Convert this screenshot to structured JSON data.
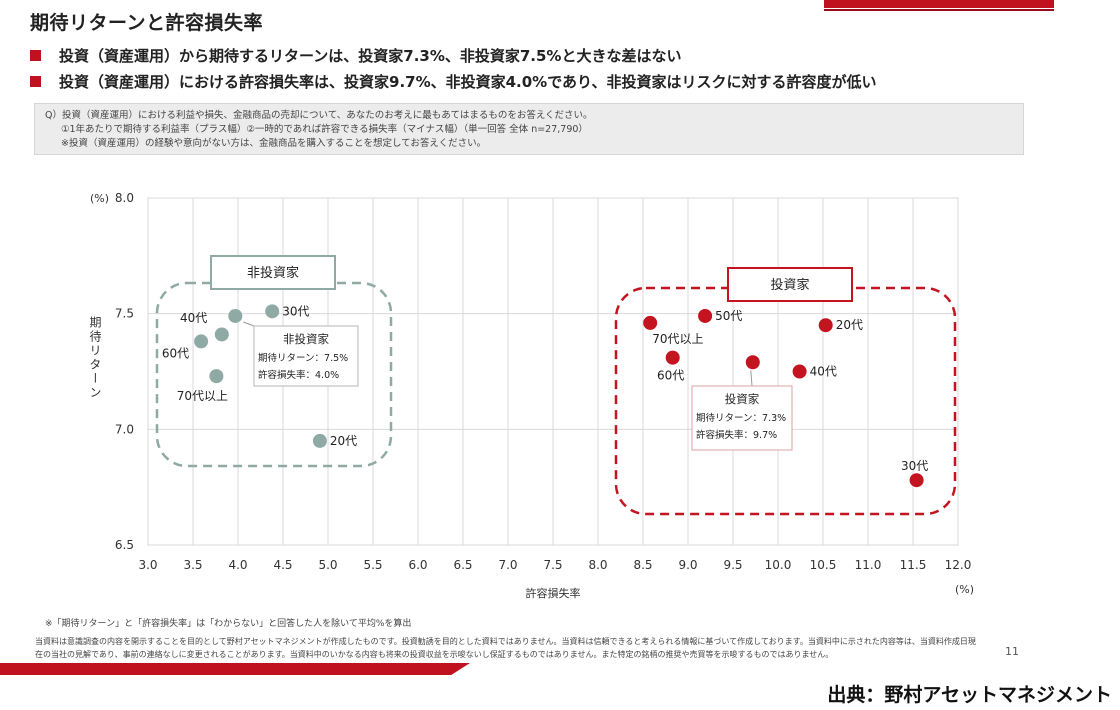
{
  "header": {
    "title": "期待リターンと許容損失率",
    "bullets": [
      "投資（資産運用）から期待するリターンは、投資家7.3%、非投資家7.5%と大きな差はない",
      "投資（資産運用）における許容損失率は、投資家9.7%、非投資家4.0%であり、非投資家はリスクに対する許容度が低い"
    ]
  },
  "question": {
    "lines": [
      "Q）投資（資産運用）における利益や損失、金融商品の売却について、あなたのお考えに最もあてはまるものをお答えください。",
      "①1年あたりで期待する利益率（プラス幅）②一時的であれば許容できる損失率（マイナス幅）（単一回答 全体 n=27,790）",
      "※投資（資産運用）の経験や意向がない方は、金融商品を購入することを想定してお答えください。"
    ]
  },
  "chart_data": {
    "type": "scatter",
    "xlabel": "許容損失率",
    "ylabel": "期待リターン",
    "x_unit": "(%)",
    "y_unit": "(%)",
    "xlim": [
      3.0,
      12.0
    ],
    "ylim": [
      6.5,
      8.0
    ],
    "x_ticks": [
      "3.0",
      "3.5",
      "4.0",
      "4.5",
      "5.0",
      "5.5",
      "6.0",
      "6.5",
      "7.0",
      "7.5",
      "8.0",
      "8.5",
      "9.0",
      "9.5",
      "10.0",
      "10.5",
      "11.0",
      "11.5",
      "12.0"
    ],
    "y_ticks": [
      "6.5",
      "7.0",
      "7.5",
      "8.0"
    ],
    "grid": true,
    "colors": {
      "non_investor": "#8fa9a4",
      "investor": "#c4141f"
    },
    "groups": [
      {
        "name": "非投資家",
        "summary_title": "非投資家",
        "summary_lines": [
          "期待リターン：7.5%",
          "許容損失率：4.0%"
        ],
        "points": [
          {
            "label": "30代",
            "x": 4.38,
            "y": 7.51
          },
          {
            "label": "40代",
            "x": 3.97,
            "y": 7.49
          },
          {
            "label": "",
            "x": 3.82,
            "y": 7.41
          },
          {
            "label": "60代",
            "x": 3.59,
            "y": 7.38
          },
          {
            "label": "70代以上",
            "x": 3.76,
            "y": 7.23
          },
          {
            "label": "20代",
            "x": 4.91,
            "y": 6.95
          }
        ]
      },
      {
        "name": "投資家",
        "summary_title": "投資家",
        "summary_lines": [
          "期待リターン：7.3%",
          "許容損失率：9.7%"
        ],
        "points": [
          {
            "label": "70代以上",
            "x": 8.58,
            "y": 7.46
          },
          {
            "label": "50代",
            "x": 9.19,
            "y": 7.49
          },
          {
            "label": "20代",
            "x": 10.53,
            "y": 7.45
          },
          {
            "label": "60代",
            "x": 8.83,
            "y": 7.31
          },
          {
            "label": "",
            "x": 9.72,
            "y": 7.29
          },
          {
            "label": "40代",
            "x": 10.24,
            "y": 7.25
          },
          {
            "label": "30代",
            "x": 11.54,
            "y": 6.78
          }
        ]
      }
    ]
  },
  "footer": {
    "note": "※「期待リターン」と「許容損失率」は「わからない」と回答した人を除いて平均%を算出",
    "disclaimer": [
      "当資料は意識調査の内容を開示することを目的として野村アセットマネジメントが作成したものです。投資勧誘を目的とした資料ではありません。当資料は信頼できると考えられる情報に基づいて作成しております。当資料中に示された内容等は、当資料作成日現",
      "在の当社の見解であり、事前の連絡なしに変更されることがあります。当資料中のいかなる内容も将来の投資収益を示唆ないし保証するものではありません。また特定の銘柄の推奨や売買等を示唆するものではありません。"
    ],
    "page_number": "11",
    "source": "出典：野村アセットマネジメント"
  }
}
